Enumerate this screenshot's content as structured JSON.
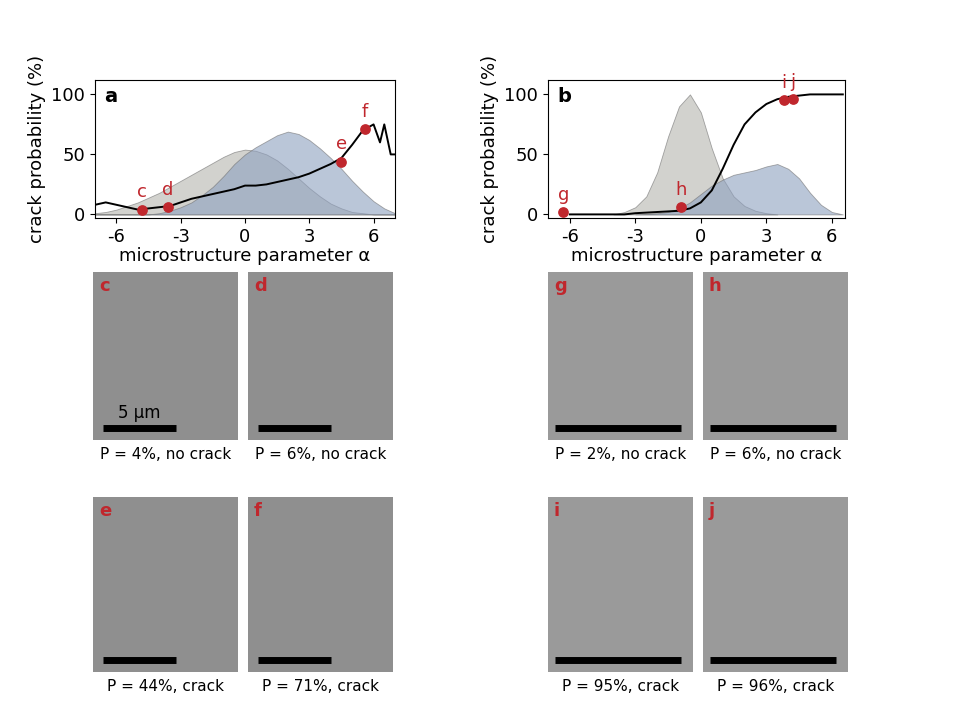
{
  "chart_data": [
    {
      "type": "line",
      "title": "a",
      "x_label": "microstructure parameter α",
      "y_label": "crack probability (%)",
      "xlim": [
        -7,
        7
      ],
      "xticks": [
        -6,
        -3,
        0,
        3,
        6
      ],
      "ylim": [
        -3,
        112
      ],
      "yticks": [
        0,
        50,
        100
      ],
      "series": [
        {
          "type": "area",
          "color": "#b4b4ae",
          "x": [
            -7,
            -6.5,
            -6,
            -5.5,
            -5,
            -4.5,
            -4,
            -3.5,
            -3,
            -2.5,
            -2,
            -1.5,
            -1,
            -0.5,
            0,
            0.5,
            1,
            1.5,
            2,
            2.5,
            3,
            3.5,
            4,
            4.5,
            5,
            5.5,
            6,
            6.5,
            7
          ],
          "values": [
            1,
            2,
            4,
            7,
            10,
            14,
            18,
            23,
            28,
            33,
            38,
            43,
            48,
            52,
            54,
            53,
            50,
            45,
            38,
            30,
            22,
            15,
            9,
            5,
            2,
            1,
            0,
            0,
            0
          ]
        },
        {
          "type": "area",
          "color": "#8da0bf",
          "x": [
            -7,
            -6.5,
            -6,
            -5.5,
            -5,
            -4.5,
            -4,
            -3.5,
            -3,
            -2.5,
            -2,
            -1.5,
            -1,
            -0.5,
            0,
            0.5,
            1,
            1.5,
            2,
            2.5,
            3,
            3.5,
            4,
            4.5,
            5,
            5.5,
            6,
            6.5,
            7
          ],
          "values": [
            0,
            0,
            0,
            0,
            0,
            0,
            1,
            3,
            6,
            10,
            16,
            23,
            32,
            42,
            50,
            56,
            61,
            66,
            69,
            67,
            62,
            55,
            47,
            38,
            28,
            19,
            11,
            5,
            1
          ]
        },
        {
          "type": "line",
          "color": "#000000",
          "x": [
            -7,
            -6.5,
            -6,
            -5.5,
            -5,
            -4.5,
            -4,
            -3.5,
            -3,
            -2.5,
            -2,
            -1.5,
            -1,
            -0.5,
            0,
            0.5,
            1,
            1.5,
            2,
            2.5,
            3,
            3.5,
            4,
            4.5,
            5,
            5.5,
            6,
            6.3,
            6.5,
            6.8,
            7
          ],
          "values": [
            8,
            10,
            8,
            6,
            4,
            5,
            6,
            7,
            10,
            13,
            15,
            17,
            19,
            21,
            24,
            24,
            25,
            27,
            29,
            31,
            34,
            38,
            42,
            47,
            58,
            70,
            75,
            60,
            75,
            50,
            50
          ]
        },
        {
          "type": "scatter",
          "color": "#c0272d",
          "labels": [
            "c",
            "d",
            "e",
            "f"
          ],
          "x": [
            -4.8,
            -3.6,
            4.5,
            5.6
          ],
          "values": [
            4,
            6,
            44,
            71
          ]
        }
      ]
    },
    {
      "type": "line",
      "title": "b",
      "x_label": "microstructure parameter α",
      "y_label": "crack probability (%)",
      "xlim": [
        -7,
        6.6
      ],
      "xticks": [
        -6,
        -3,
        0,
        3,
        6
      ],
      "ylim": [
        -3,
        112
      ],
      "yticks": [
        0,
        50,
        100
      ],
      "series": [
        {
          "type": "area",
          "color": "#b4b4ae",
          "x": [
            -4,
            -3.5,
            -3,
            -2.5,
            -2,
            -1.5,
            -1,
            -0.5,
            0,
            0.5,
            1,
            1.5,
            2,
            2.5,
            3,
            3.5
          ],
          "values": [
            0,
            2,
            6,
            15,
            35,
            65,
            90,
            100,
            85,
            55,
            30,
            15,
            7,
            3,
            1,
            0
          ]
        },
        {
          "type": "area",
          "color": "#8da0bf",
          "x": [
            -3,
            -2,
            -1.5,
            -1,
            -0.5,
            0,
            0.5,
            1,
            1.5,
            2,
            2.5,
            3,
            3.5,
            4,
            4.5,
            5,
            5.5,
            6,
            6.5
          ],
          "values": [
            0,
            1,
            2,
            5,
            10,
            17,
            24,
            29,
            33,
            35,
            37,
            40,
            42,
            38,
            30,
            18,
            8,
            2,
            0
          ]
        },
        {
          "type": "line",
          "color": "#000000",
          "x": [
            -6,
            -3.5,
            -3,
            -2,
            -1,
            -0.5,
            0,
            0.5,
            1,
            1.5,
            2,
            2.5,
            3,
            3.5,
            4,
            4.5,
            5,
            6.5
          ],
          "values": [
            0,
            0,
            1,
            2,
            3,
            5,
            10,
            20,
            38,
            58,
            75,
            85,
            92,
            96,
            98,
            99,
            100,
            100
          ]
        },
        {
          "type": "scatter",
          "color": "#c0272d",
          "labels": [
            "g",
            "h",
            "i",
            "j"
          ],
          "x": [
            -6.3,
            -0.9,
            3.8,
            4.2
          ],
          "values": [
            2,
            6,
            95,
            96
          ]
        }
      ]
    }
  ],
  "images": [
    {
      "label": "c",
      "caption": "P = 4%, no crack",
      "scale_label": "5 µm"
    },
    {
      "label": "d",
      "caption": "P = 6%, no crack"
    },
    {
      "label": "e",
      "caption": "P = 44%, crack"
    },
    {
      "label": "f",
      "caption": "P = 71%, crack"
    },
    {
      "label": "g",
      "caption": "P = 2%, no crack"
    },
    {
      "label": "h",
      "caption": "P = 6%, no crack"
    },
    {
      "label": "i",
      "caption": "P = 95%, crack"
    },
    {
      "label": "j",
      "caption": "P = 96%, crack"
    }
  ]
}
